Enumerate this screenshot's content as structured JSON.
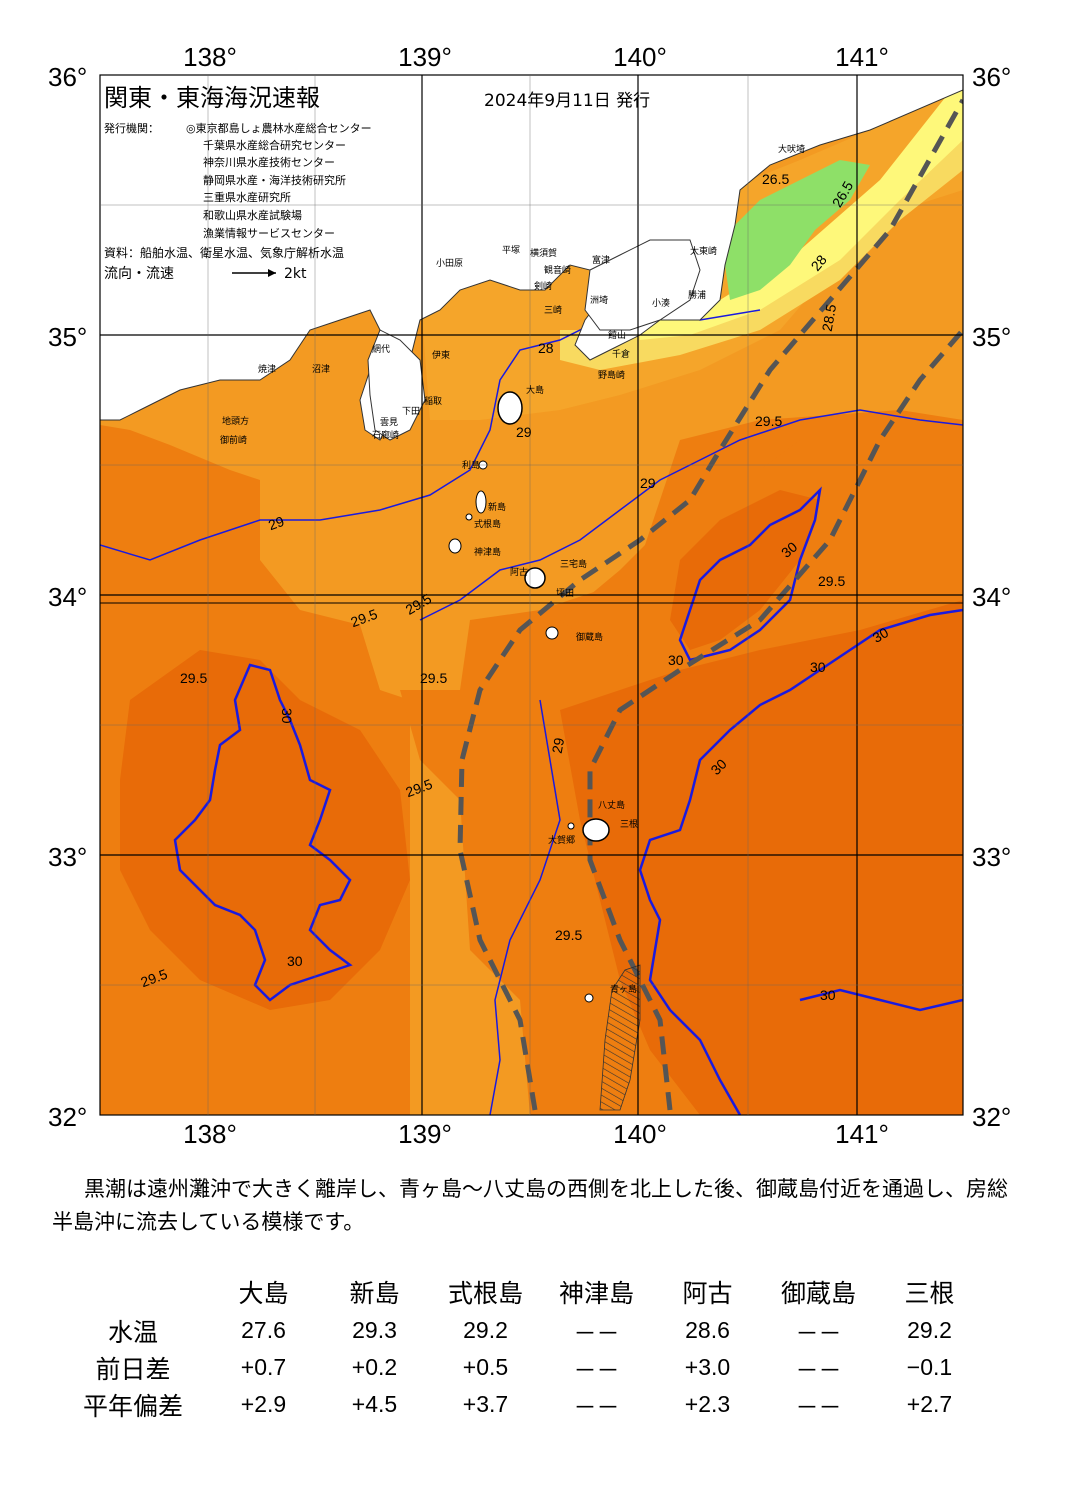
{
  "title": "関東・東海海況速報",
  "issue_date": "2024年9月11日 発行",
  "issuers_label": "発行機関：",
  "issuers": [
    "◎東京都島しょ農林水産総合センター",
    "千葉県水産総合研究センター",
    "神奈川県水産技術センター",
    "静岡県水産・海洋技術研究所",
    "三重県水産研究所",
    "和歌山県水産試験場",
    "漁業情報サービスセンター"
  ],
  "source": "資料：船舶水温、衛星水温、気象庁解析水温",
  "flow_legend": {
    "label": "流向・流速",
    "value": "2kt"
  },
  "axes": {
    "lon_ticks": [
      "138°",
      "139°",
      "140°",
      "141°"
    ],
    "lat_ticks": [
      "36°",
      "35°",
      "34°",
      "33°",
      "32°"
    ],
    "lon_range": [
      137.5,
      141.5
    ],
    "lat_range": [
      32,
      36
    ]
  },
  "colors": {
    "t_lt_27": "#fef87a",
    "t_27": "#f8da60",
    "t_28": "#f5a52a",
    "t_29": "#f39a22",
    "t_295": "#ee7e10",
    "t_30": "#e86b08",
    "cold_patch": "#8ee068",
    "isotherm_30": "#1a1adf",
    "kuroshio": "#555555",
    "land": "#ffffff"
  },
  "isotherm_labels": [
    "26.5",
    "26.5",
    "28",
    "28",
    "28.5",
    "29",
    "29",
    "29",
    "29",
    "29.5",
    "29.5",
    "29.5",
    "29.5",
    "29.5",
    "29.5",
    "29.5",
    "29.5",
    "29.5",
    "30",
    "30",
    "30",
    "30",
    "30",
    "30",
    "30",
    "30"
  ],
  "places": [
    "大吠埼",
    "太東崎",
    "勝浦",
    "小湊",
    "洲埼",
    "富津",
    "館山",
    "千倉",
    "野島崎",
    "横須賀",
    "観音崎",
    "剣崎",
    "三崎",
    "平塚",
    "小田原",
    "網代",
    "伊東",
    "稲取",
    "下田",
    "石廊崎",
    "雲見",
    "沼津",
    "焼津",
    "御前崎",
    "地頭方",
    "大島",
    "利島",
    "新島",
    "式根島",
    "神津島",
    "三宅島",
    "阿古",
    "坪田",
    "御蔵島",
    "八丈島",
    "三根",
    "大賀郷",
    "青ヶ島"
  ],
  "comment": "黒潮は遠州灘沖で大きく離岸し、青ヶ島～八丈島の西側を北上した後、御蔵島付近を通過し、房総半島沖に流去している模様です。",
  "table": {
    "columns": [
      "大島",
      "新島",
      "式根島",
      "神津島",
      "阿古",
      "御蔵島",
      "三根"
    ],
    "rows": [
      {
        "label": "水温",
        "values": [
          "27.6",
          "29.3",
          "29.2",
          "－－",
          "28.6",
          "－－",
          "29.2"
        ]
      },
      {
        "label": "前日差",
        "values": [
          "+0.7",
          "+0.2",
          "+0.5",
          "－－",
          "+3.0",
          "－－",
          "−0.1"
        ]
      },
      {
        "label": "平年偏差",
        "values": [
          "+2.9",
          "+4.5",
          "+3.7",
          "－－",
          "+2.3",
          "－－",
          "+2.7"
        ]
      }
    ]
  }
}
